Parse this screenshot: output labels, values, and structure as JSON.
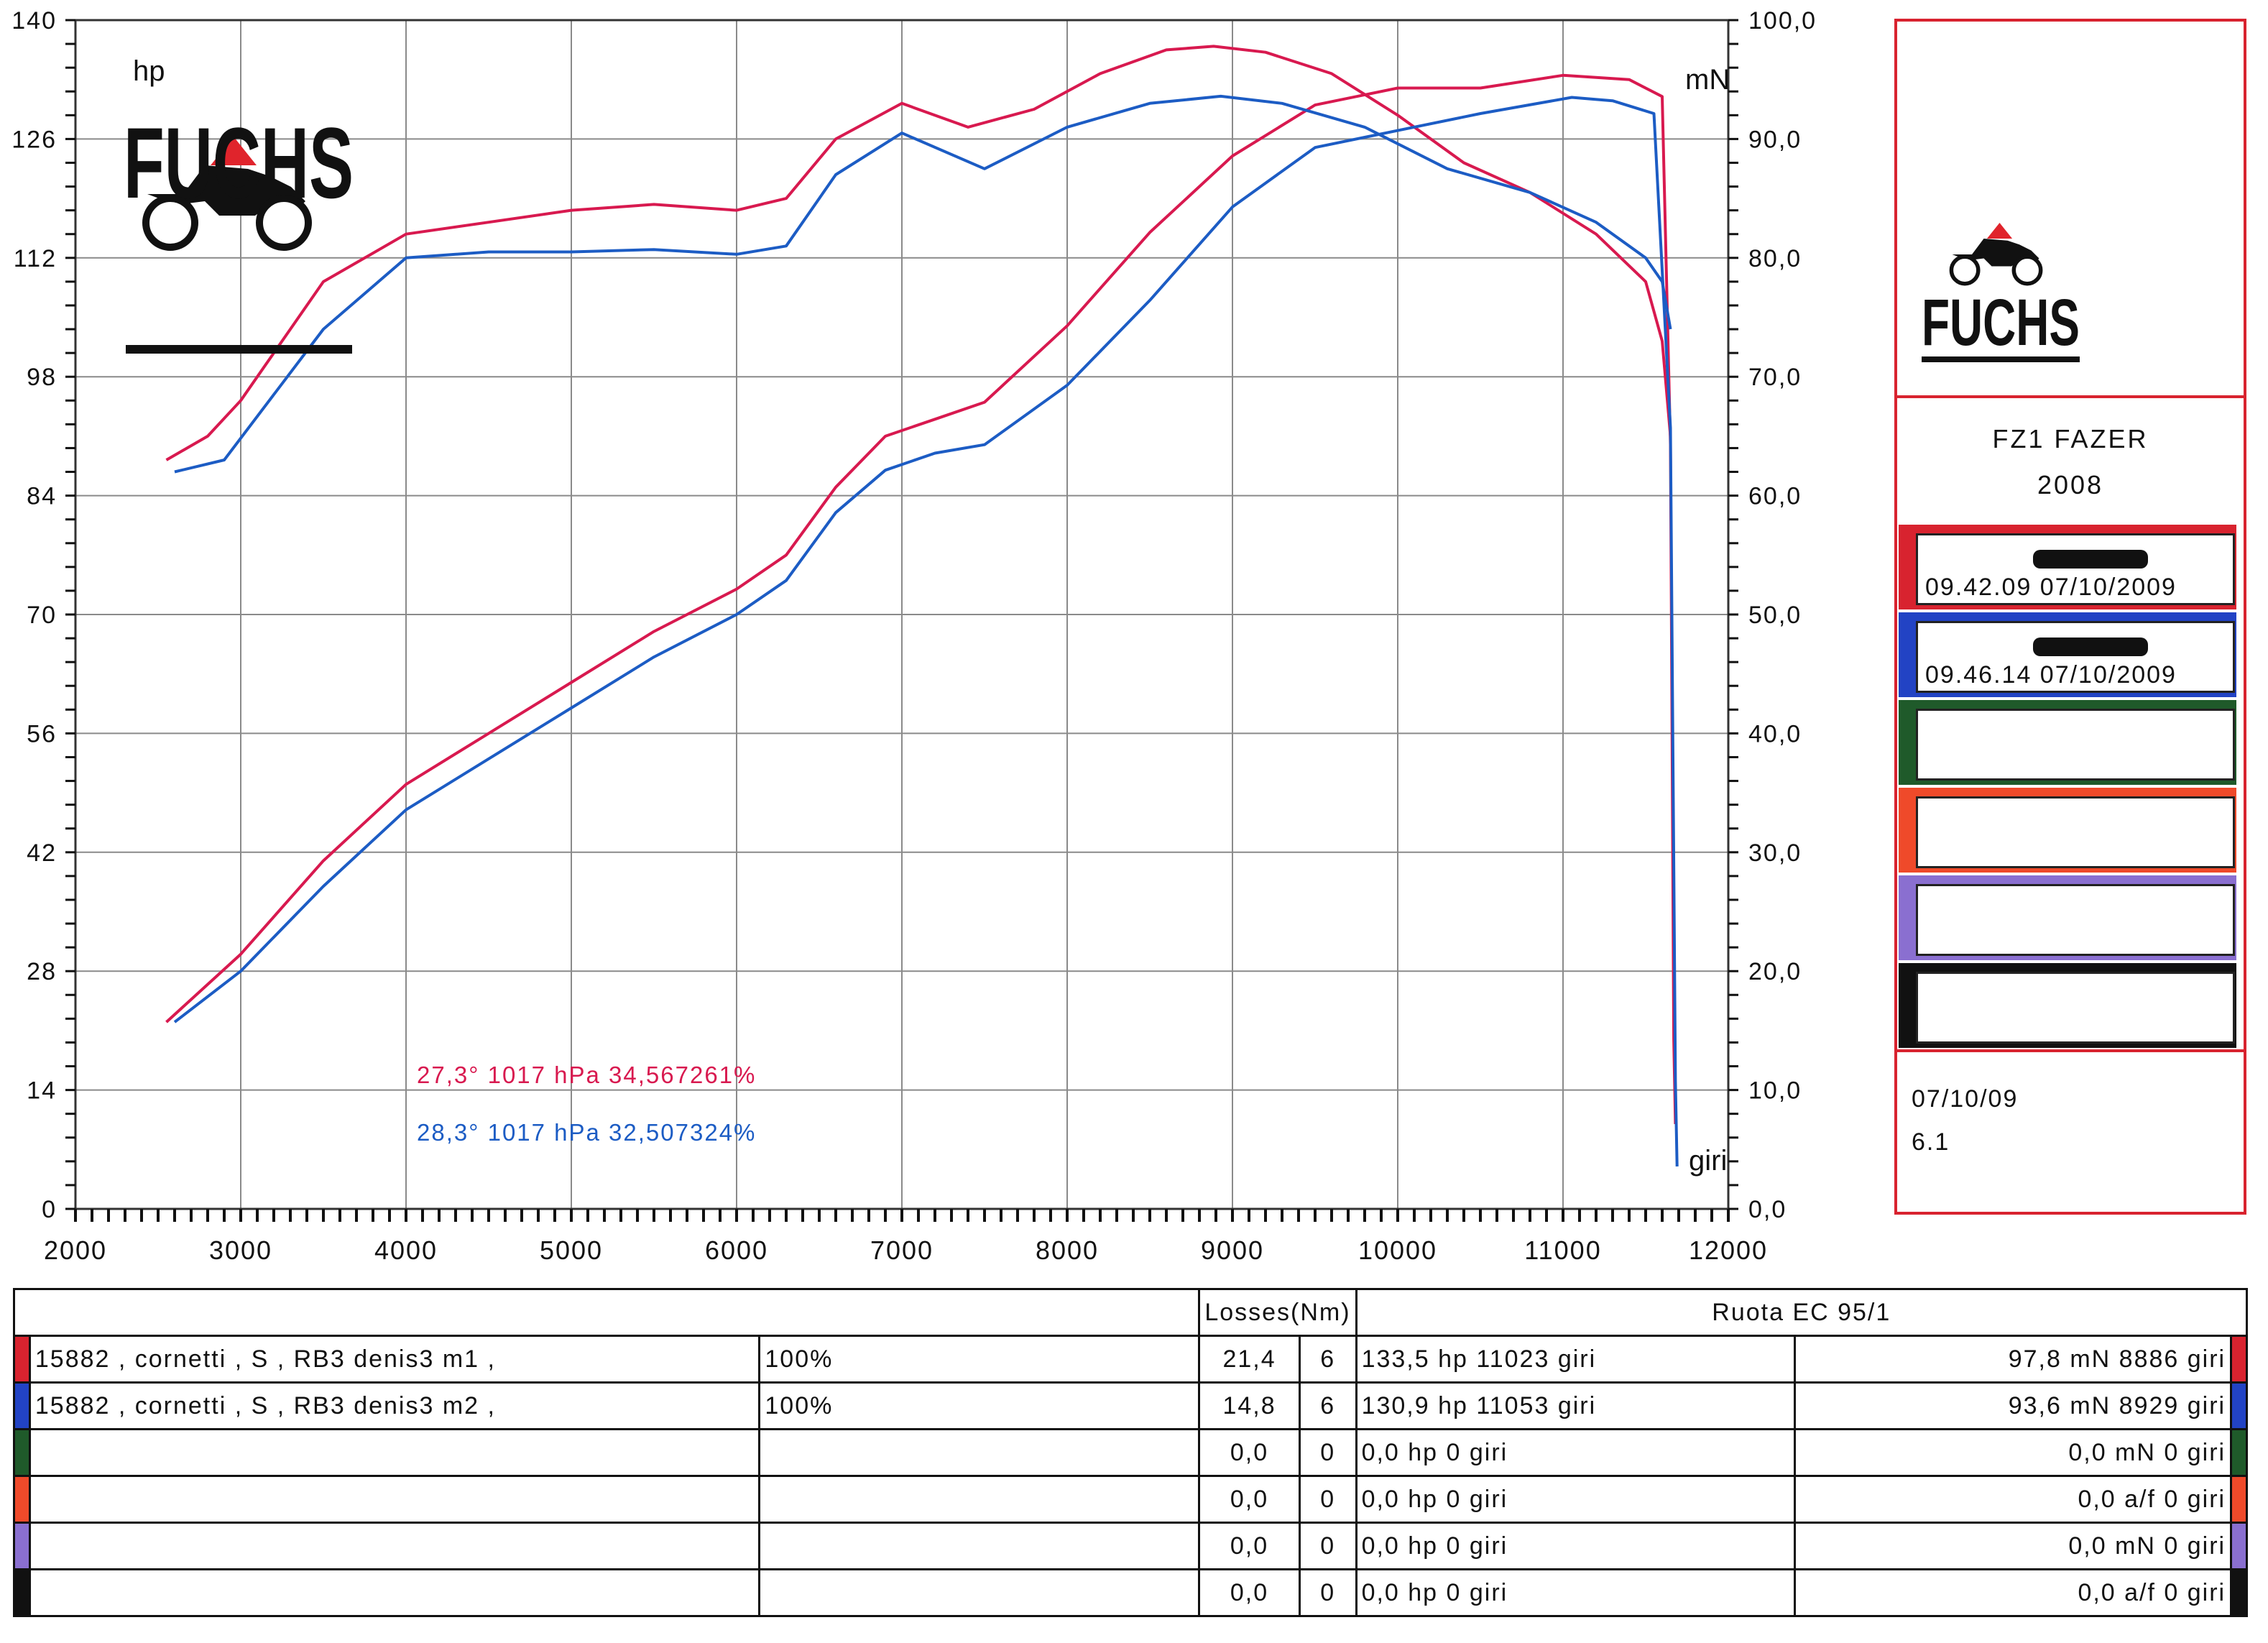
{
  "chart_data": {
    "type": "line",
    "x_axis": {
      "min": 2000,
      "max": 12000,
      "ticks": [
        2000,
        3000,
        4000,
        5000,
        6000,
        7000,
        8000,
        9000,
        10000,
        11000,
        12000
      ],
      "label": "giri"
    },
    "y_left": {
      "label": "hp",
      "min": 0,
      "max": 140,
      "ticks": [
        0,
        14,
        28,
        42,
        56,
        70,
        84,
        98,
        112,
        126,
        140
      ]
    },
    "y_right": {
      "label": "mN",
      "min": 0,
      "max": 100,
      "ticks": [
        "0,0",
        "10,0",
        "20,0",
        "30,0",
        "40,0",
        "50,0",
        "60,0",
        "70,0",
        "80,0",
        "90,0",
        "100,0"
      ]
    },
    "series": [
      {
        "run": "m1",
        "kind": "power",
        "color": "#d8194f",
        "axis": "left",
        "points": [
          [
            2550,
            22
          ],
          [
            3000,
            30
          ],
          [
            3500,
            41
          ],
          [
            4000,
            50
          ],
          [
            4500,
            56
          ],
          [
            5000,
            62
          ],
          [
            5500,
            68
          ],
          [
            6000,
            73
          ],
          [
            6300,
            77
          ],
          [
            6600,
            85
          ],
          [
            6900,
            91
          ],
          [
            7200,
            93
          ],
          [
            7500,
            95
          ],
          [
            8000,
            104
          ],
          [
            8500,
            115
          ],
          [
            9000,
            124
          ],
          [
            9500,
            130
          ],
          [
            10000,
            132
          ],
          [
            10500,
            132
          ],
          [
            11000,
            133.5
          ],
          [
            11400,
            133
          ],
          [
            11600,
            131
          ],
          [
            11650,
            90
          ],
          [
            11670,
            20
          ],
          [
            11680,
            10
          ]
        ]
      },
      {
        "run": "m1",
        "kind": "torque",
        "color": "#d8194f",
        "axis": "right",
        "points": [
          [
            2550,
            63
          ],
          [
            2800,
            65
          ],
          [
            3000,
            68
          ],
          [
            3500,
            78
          ],
          [
            4000,
            82
          ],
          [
            4500,
            83
          ],
          [
            5000,
            84
          ],
          [
            5500,
            84.5
          ],
          [
            6000,
            84
          ],
          [
            6300,
            85
          ],
          [
            6600,
            90
          ],
          [
            7000,
            93
          ],
          [
            7400,
            91
          ],
          [
            7800,
            92.5
          ],
          [
            8200,
            95.5
          ],
          [
            8600,
            97.5
          ],
          [
            8886,
            97.8
          ],
          [
            9200,
            97.3
          ],
          [
            9600,
            95.5
          ],
          [
            10000,
            92
          ],
          [
            10400,
            88
          ],
          [
            10800,
            85.5
          ],
          [
            11200,
            82
          ],
          [
            11500,
            78
          ],
          [
            11600,
            73
          ],
          [
            11650,
            65
          ]
        ]
      },
      {
        "run": "m2",
        "kind": "power",
        "color": "#1c5cc4",
        "axis": "left",
        "points": [
          [
            2600,
            22
          ],
          [
            3000,
            28
          ],
          [
            3500,
            38
          ],
          [
            4000,
            47
          ],
          [
            4500,
            53
          ],
          [
            5000,
            59
          ],
          [
            5500,
            65
          ],
          [
            6000,
            70
          ],
          [
            6300,
            74
          ],
          [
            6600,
            82
          ],
          [
            6900,
            87
          ],
          [
            7200,
            89
          ],
          [
            7500,
            90
          ],
          [
            8000,
            97
          ],
          [
            8500,
            107
          ],
          [
            9000,
            118
          ],
          [
            9500,
            125
          ],
          [
            10000,
            127
          ],
          [
            10500,
            129
          ],
          [
            11053,
            130.9
          ],
          [
            11300,
            130.5
          ],
          [
            11550,
            129
          ],
          [
            11650,
            92
          ],
          [
            11680,
            15
          ],
          [
            11690,
            5
          ]
        ]
      },
      {
        "run": "m2",
        "kind": "torque",
        "color": "#1c5cc4",
        "axis": "right",
        "points": [
          [
            2600,
            62
          ],
          [
            2900,
            63
          ],
          [
            3500,
            74
          ],
          [
            4000,
            80
          ],
          [
            4500,
            80.5
          ],
          [
            5000,
            80.5
          ],
          [
            5500,
            80.7
          ],
          [
            6000,
            80.3
          ],
          [
            6300,
            81
          ],
          [
            6600,
            87
          ],
          [
            7000,
            90.5
          ],
          [
            7500,
            87.5
          ],
          [
            8000,
            91
          ],
          [
            8500,
            93
          ],
          [
            8929,
            93.6
          ],
          [
            9300,
            93
          ],
          [
            9800,
            91
          ],
          [
            10300,
            87.5
          ],
          [
            10800,
            85.5
          ],
          [
            11200,
            83
          ],
          [
            11500,
            80
          ],
          [
            11600,
            78
          ],
          [
            11650,
            74
          ]
        ]
      }
    ],
    "annotations": [
      {
        "text": "27,3°  1017 hPa  34,567261%",
        "color": "#d8194f"
      },
      {
        "text": "28,3°  1017 hPa  32,507324%",
        "color": "#1c5cc4"
      }
    ],
    "grid": true
  },
  "side": {
    "brand": "FUCHS",
    "model": "FZ1 FAZER",
    "year": "2008",
    "runs": [
      {
        "color": "#d8232f",
        "time": "09.42.09  07/10/2009",
        "redacted": true
      },
      {
        "color": "#2243c4",
        "time": "09.46.14  07/10/2009",
        "redacted": true
      },
      {
        "color": "#1f5a2a",
        "time": "",
        "redacted": false
      },
      {
        "color": "#ef4a2a",
        "time": "",
        "redacted": false
      },
      {
        "color": "#8a6fd0",
        "time": "",
        "redacted": false
      },
      {
        "color": "#111111",
        "time": "",
        "redacted": false
      }
    ],
    "footer_date": "07/10/09",
    "footer_version": "6.1"
  },
  "table": {
    "losses_header": "Losses(Nm)",
    "wheel_header": "Ruota EC 95/1",
    "rows": [
      {
        "color": "#d8232f",
        "desc": "15882   , cornetti   , S    , RB3 denis3 m1   ,",
        "pct": "100%",
        "loss": "21,4",
        "n": "6",
        "hp": "133,5 hp 11023 giri",
        "torque": "97,8 mN 8886 giri"
      },
      {
        "color": "#2243c4",
        "desc": "15882   , cornetti   , S    , RB3 denis3 m2   ,",
        "pct": "100%",
        "loss": "14,8",
        "n": "6",
        "hp": "130,9 hp 11053 giri",
        "torque": "93,6 mN 8929 giri"
      },
      {
        "color": "#1f5a2a",
        "desc": "",
        "pct": "",
        "loss": "0,0",
        "n": "0",
        "hp": "0,0 hp 0 giri",
        "torque": "0,0 mN 0 giri"
      },
      {
        "color": "#ef4a2a",
        "desc": "",
        "pct": "",
        "loss": "0,0",
        "n": "0",
        "hp": "0,0 hp 0 giri",
        "torque": "0,0 a/f 0 giri"
      },
      {
        "color": "#8a6fd0",
        "desc": "",
        "pct": "",
        "loss": "0,0",
        "n": "0",
        "hp": "0,0 hp 0 giri",
        "torque": "0,0 mN 0 giri"
      },
      {
        "color": "#111111",
        "desc": "",
        "pct": "",
        "loss": "0,0",
        "n": "0",
        "hp": "0,0 hp 0 giri",
        "torque": "0,0 a/f 0 giri"
      }
    ]
  }
}
